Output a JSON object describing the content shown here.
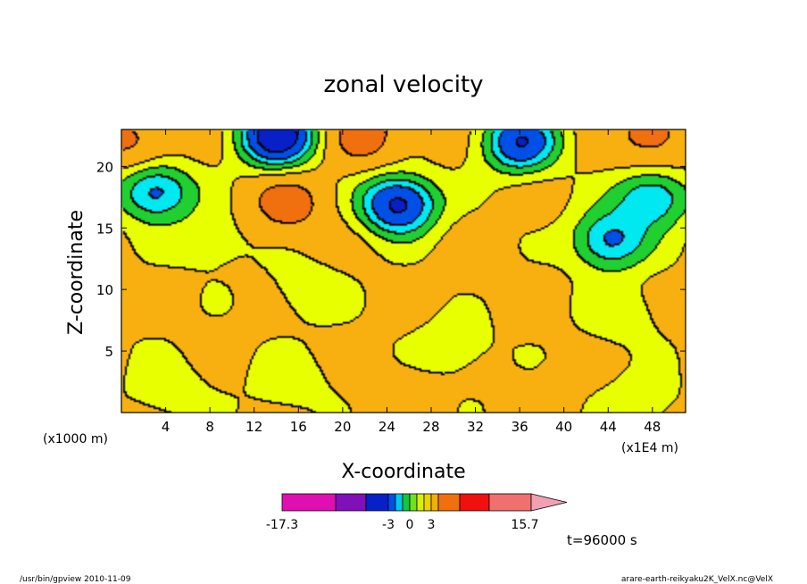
{
  "chart_data": {
    "type": "heatmap",
    "title": "zonal velocity",
    "xlabel": "X-coordinate",
    "ylabel": "Z-coordinate",
    "x_unit": "(x1E4 m)",
    "y_unit": "(x1000 m)",
    "xlim": [
      0,
      51
    ],
    "ylim": [
      0,
      23
    ],
    "xticks": [
      "4",
      "8",
      "12",
      "16",
      "20",
      "24",
      "28",
      "32",
      "36",
      "40",
      "44",
      "48"
    ],
    "yticks": [
      "5",
      "10",
      "15",
      "20"
    ],
    "colorbar": {
      "min_label": "-17.3",
      "labels": [
        "-3",
        "0",
        "3"
      ],
      "max_label": "15.7",
      "colors": [
        "#e010b0",
        "#8010b8",
        "#0820c8",
        "#0050e8",
        "#00c8f0",
        "#10c840",
        "#70e020",
        "#d8f000",
        "#f0d000",
        "#f0b000",
        "#f07010",
        "#f01010",
        "#f07070",
        "#f0a0b0"
      ]
    },
    "fill_levels": {
      "bands": [
        "#0820c8",
        "#0050e8",
        "#00e8f0",
        "#20d030",
        "#e8ff00",
        "#f8b010",
        "#f07010"
      ],
      "background": "#e8ff00"
    },
    "field_features": [
      {
        "x": 25,
        "z": 17.0,
        "value": -9.5
      },
      {
        "x": 14,
        "z": 22.5,
        "value": -11.0
      },
      {
        "x": 36,
        "z": 22.0,
        "value": -8.0
      },
      {
        "x": 3,
        "z": 18.0,
        "value": -6.5
      },
      {
        "x": 44,
        "z": 14.0,
        "value": -6.0
      },
      {
        "x": 48,
        "z": 17.5,
        "value": -5.5
      },
      {
        "x": 15,
        "z": 17.0,
        "value": 5.0
      },
      {
        "x": 22,
        "z": 22.5,
        "value": 5.0
      },
      {
        "x": 48,
        "z": 22.5,
        "value": 5.0
      },
      {
        "x": 1,
        "z": 22,
        "value": 4.5
      },
      {
        "x": 25,
        "z": 1.5,
        "value": 2.5
      },
      {
        "x": 17,
        "z": 10.0,
        "value": -1.0
      },
      {
        "x": 8,
        "z": 14.0,
        "value": -1.0
      },
      {
        "x": 30,
        "z": 5.5,
        "value": -1.2
      },
      {
        "x": 45,
        "z": 8.0,
        "value": -1.0
      },
      {
        "x": 4,
        "z": 2.0,
        "value": -1.0
      },
      {
        "x": 15,
        "z": 2.5,
        "value": -1.0
      },
      {
        "x": 47,
        "z": 1.0,
        "value": -1.0
      },
      {
        "x": 40,
        "z": 2.0,
        "value": 1.5
      },
      {
        "x": 33,
        "z": 11.0,
        "value": 1.5
      },
      {
        "x": 2,
        "z": 7.0,
        "value": 1.0
      }
    ],
    "time_label": "t=96000 s"
  },
  "footer": {
    "left": "/usr/bin/gpview   2010-11-09",
    "right": "arare-earth-reikyaku2K_VelX.nc@VelX"
  }
}
